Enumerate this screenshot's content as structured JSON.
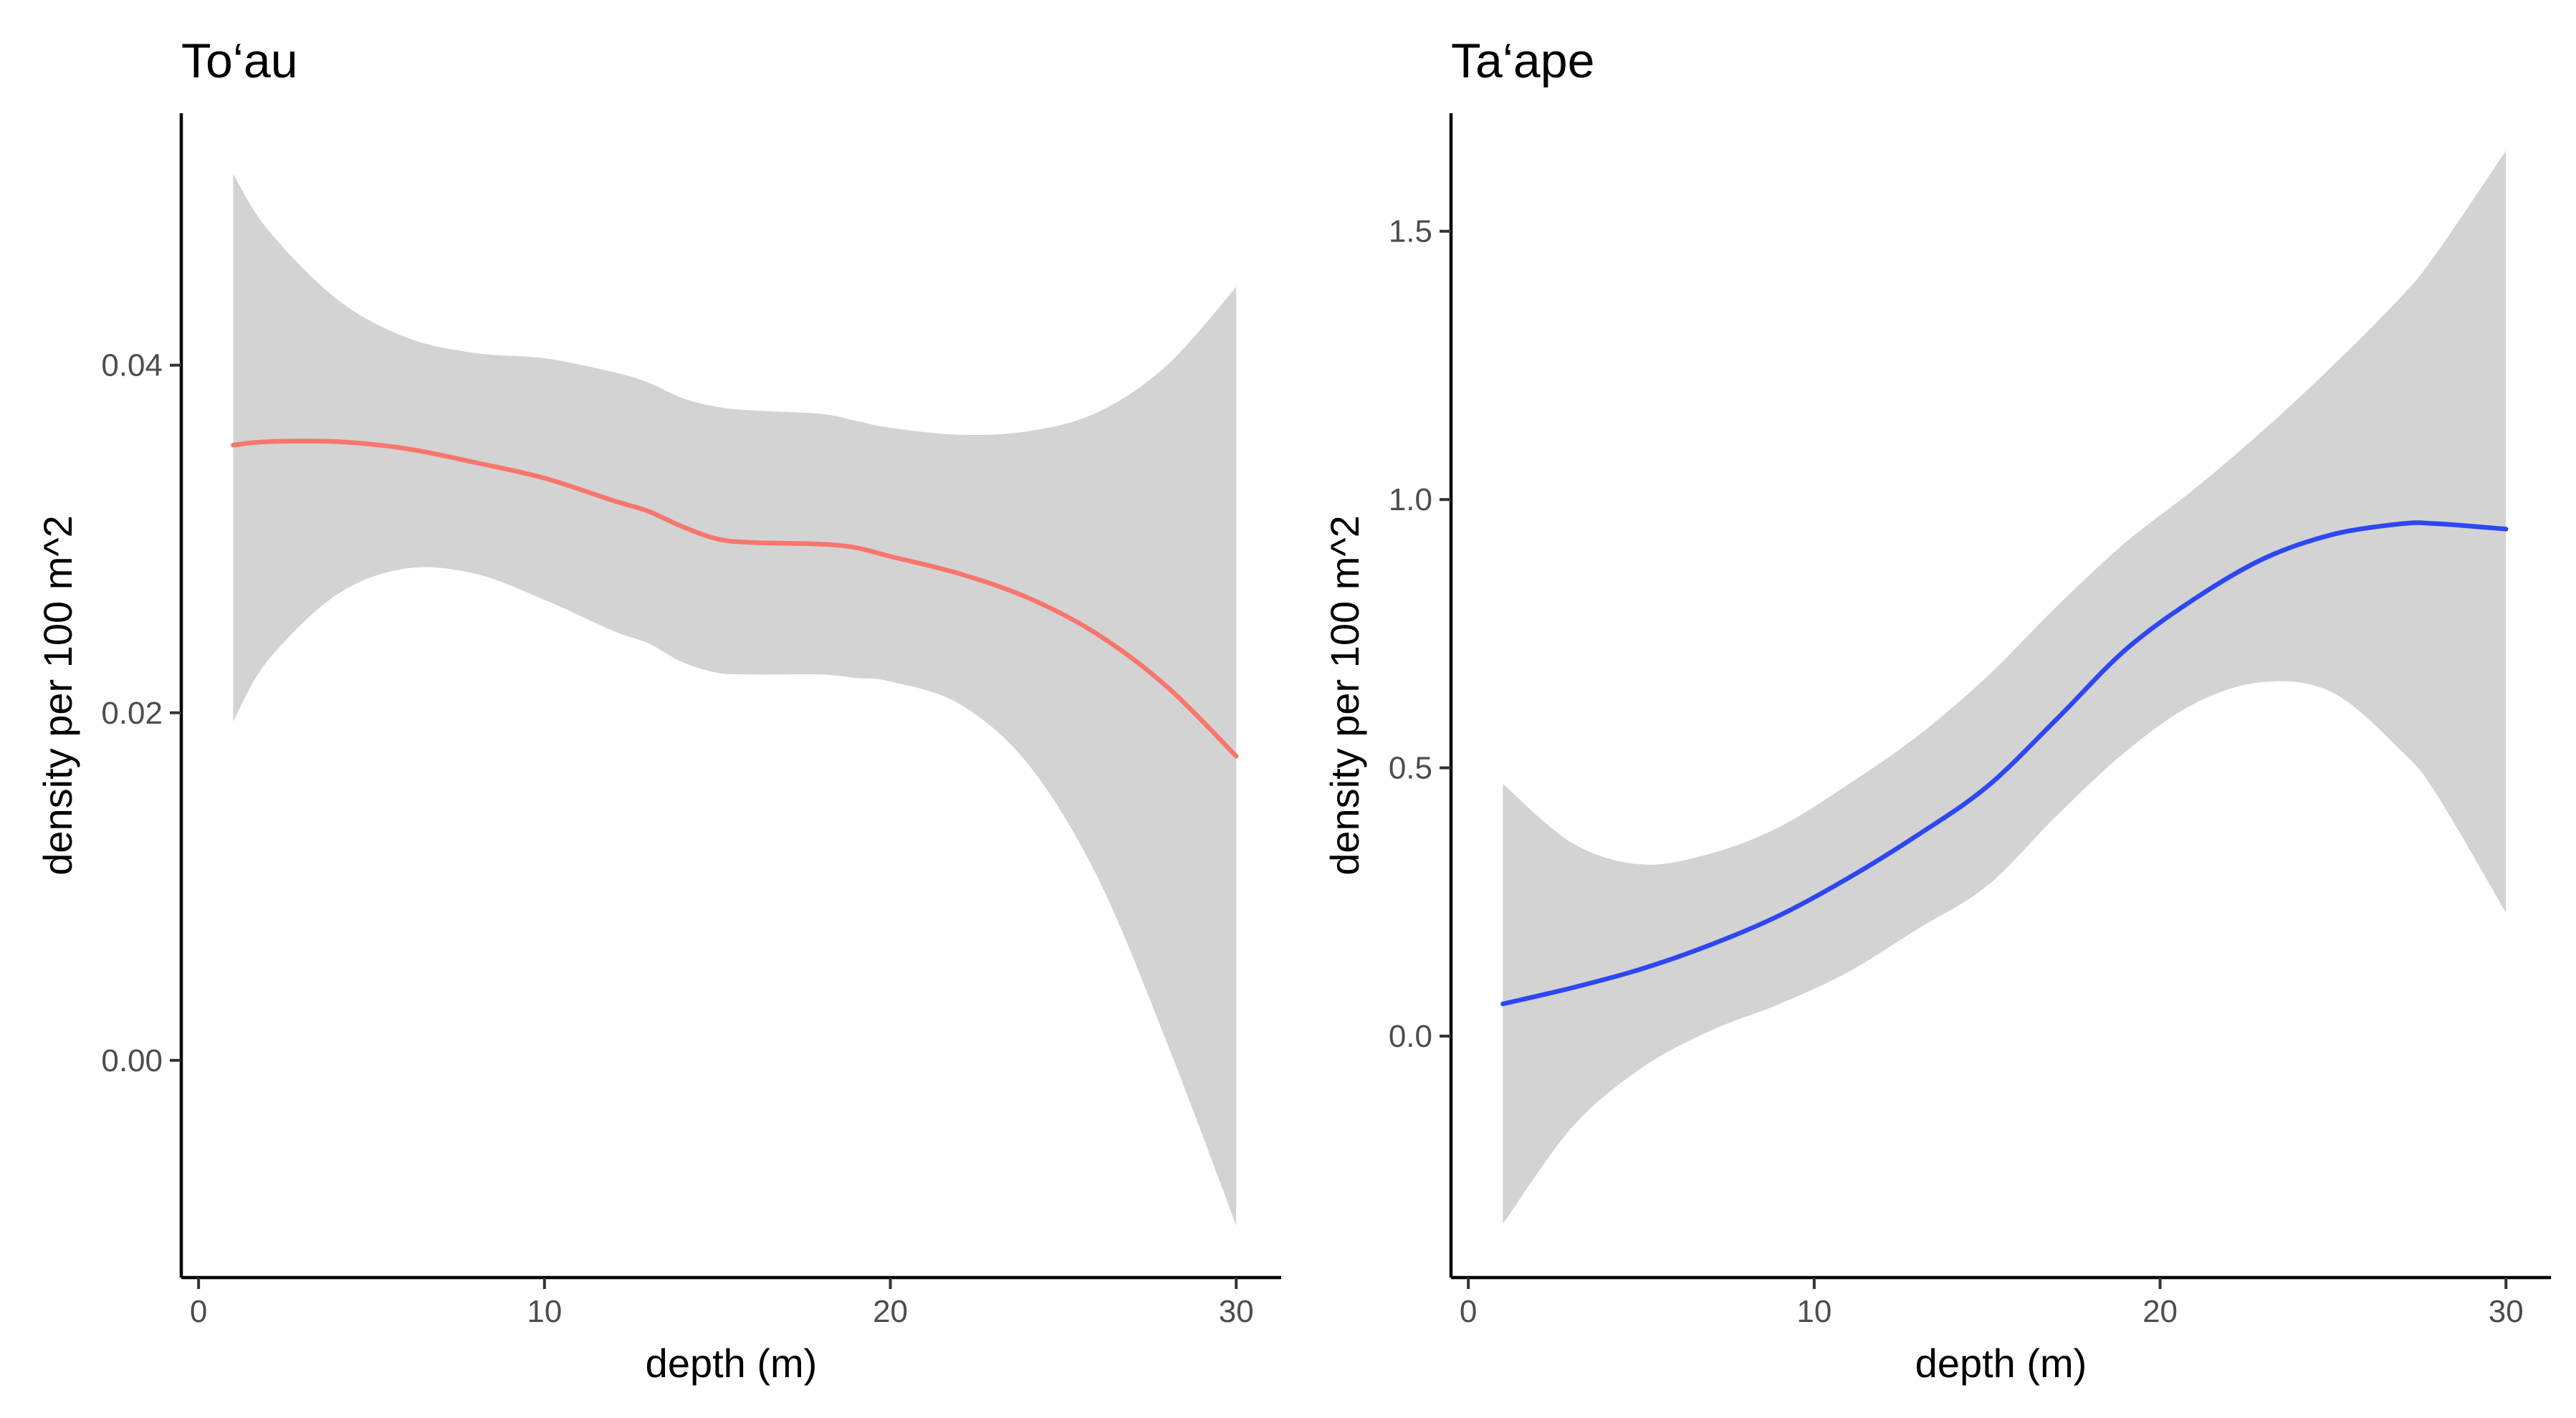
{
  "chart_data": [
    {
      "type": "line",
      "title": "To‘au",
      "xlabel": "depth (m)",
      "ylabel": "density per 100 m^2",
      "xlim": [
        -0.5,
        31.3
      ],
      "ylim": [
        -0.0125,
        0.0545
      ],
      "x_ticks": [
        0,
        10,
        20,
        30
      ],
      "x_tick_labels": [
        "0",
        "10",
        "20",
        "30"
      ],
      "y_ticks": [
        0.0,
        0.02,
        0.04
      ],
      "y_tick_labels": [
        "0.00",
        "0.02",
        "0.04"
      ],
      "grid": false,
      "legend": "none",
      "colors": {
        "line": "#F8766D",
        "ribbon": "#D3D3D3"
      },
      "series": [
        {
          "x": [
            1,
            2,
            4,
            6,
            8,
            10,
            12,
            13,
            14,
            15,
            16,
            18,
            19,
            20,
            22,
            24,
            26,
            28,
            30
          ],
          "y": [
            0.0354,
            0.0356,
            0.0356,
            0.0352,
            0.0344,
            0.0335,
            0.0322,
            0.0316,
            0.0307,
            0.03,
            0.0298,
            0.0297,
            0.0295,
            0.029,
            0.028,
            0.0266,
            0.0245,
            0.0215,
            0.0175
          ],
          "ymin": [
            0.0195,
            0.023,
            0.0268,
            0.0283,
            0.028,
            0.0265,
            0.0247,
            0.024,
            0.0229,
            0.0223,
            0.0222,
            0.0222,
            0.022,
            0.0218,
            0.0205,
            0.017,
            0.0105,
            0.001,
            -0.0095
          ],
          "ymax": [
            0.051,
            0.0478,
            0.0438,
            0.0416,
            0.0407,
            0.0404,
            0.0396,
            0.039,
            0.0381,
            0.0376,
            0.0374,
            0.0372,
            0.0368,
            0.0364,
            0.036,
            0.0362,
            0.0373,
            0.04,
            0.0445
          ]
        }
      ]
    },
    {
      "type": "line",
      "title": "Ta‘ape",
      "xlabel": "depth (m)",
      "ylabel": "density per 100 m^2",
      "xlim": [
        -0.5,
        31.3
      ],
      "ylim": [
        -0.45,
        1.72
      ],
      "x_ticks": [
        0,
        10,
        20,
        30
      ],
      "x_tick_labels": [
        "0",
        "10",
        "20",
        "30"
      ],
      "y_ticks": [
        0.0,
        0.5,
        1.0,
        1.5
      ],
      "y_tick_labels": [
        "0.0",
        "0.5",
        "1.0",
        "1.5"
      ],
      "grid": false,
      "legend": "none",
      "colors": {
        "line": "#2E47F0",
        "ribbon": "#D3D3D3"
      },
      "series": [
        {
          "x": [
            1,
            3,
            5,
            7,
            9,
            11,
            13,
            15,
            17,
            19,
            21,
            23,
            25,
            27,
            28,
            30
          ],
          "y": [
            0.06,
            0.09,
            0.125,
            0.17,
            0.225,
            0.295,
            0.375,
            0.465,
            0.59,
            0.72,
            0.815,
            0.89,
            0.935,
            0.955,
            0.955,
            0.945
          ],
          "ymin": [
            -0.35,
            -0.17,
            -0.06,
            0.01,
            0.06,
            0.12,
            0.2,
            0.28,
            0.41,
            0.53,
            0.62,
            0.66,
            0.64,
            0.53,
            0.45,
            0.23
          ],
          "ymax": [
            0.47,
            0.36,
            0.32,
            0.34,
            0.39,
            0.47,
            0.56,
            0.67,
            0.8,
            0.92,
            1.02,
            1.13,
            1.25,
            1.38,
            1.46,
            1.65
          ]
        }
      ]
    }
  ]
}
